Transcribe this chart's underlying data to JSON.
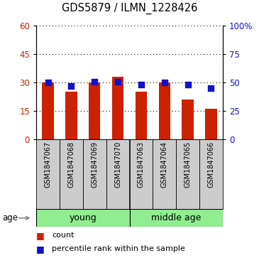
{
  "title": "GDS5879 / ILMN_1228426",
  "samples": [
    "GSM1847067",
    "GSM1847068",
    "GSM1847069",
    "GSM1847070",
    "GSM1847063",
    "GSM1847064",
    "GSM1847065",
    "GSM1847066"
  ],
  "counts": [
    30,
    25,
    30,
    33,
    25,
    30,
    21,
    16
  ],
  "percentiles": [
    50,
    47,
    51,
    51,
    48,
    50,
    48,
    45
  ],
  "bar_color": "#CC2200",
  "dot_color": "#1111CC",
  "left_ylim": [
    0,
    60
  ],
  "right_ylim": [
    0,
    100
  ],
  "left_yticks": [
    0,
    15,
    30,
    45,
    60
  ],
  "right_yticks": [
    0,
    25,
    50,
    75,
    100
  ],
  "right_yticklabels": [
    "0",
    "25",
    "50",
    "75",
    "100%"
  ],
  "left_ycolor": "#CC2200",
  "right_ycolor": "#1111CC",
  "bar_width": 0.5,
  "dot_size": 30,
  "age_label": "age",
  "legend_count_label": "count",
  "legend_percentile_label": "percentile rank within the sample",
  "sample_box_color": "#CCCCCC",
  "young_color": "#90EE90",
  "young_label": "young",
  "middle_label": "middle age",
  "group_split": 4,
  "figsize": [
    3.65,
    3.63
  ],
  "dpi": 100
}
